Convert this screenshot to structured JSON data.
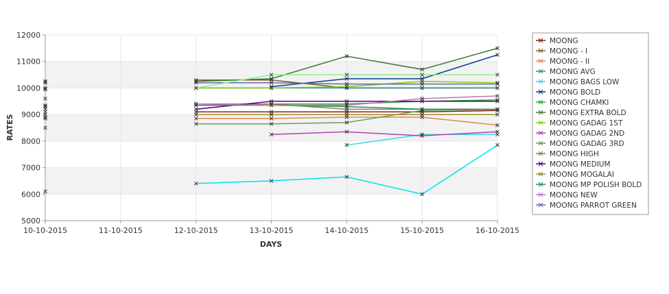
{
  "chart_data": {
    "type": "line",
    "xlabel": "DAYS",
    "ylabel": "RATES",
    "ylim": [
      5000,
      12000
    ],
    "yticks": [
      5000,
      6000,
      7000,
      8000,
      9000,
      10000,
      11000,
      12000
    ],
    "categories": [
      "10-10-2015",
      "11-10-2015",
      "12-10-2015",
      "13-10-2015",
      "14-10-2015",
      "15-10-2015",
      "16-10-2015"
    ],
    "grid": true,
    "legend_position": "right",
    "series": [
      {
        "name": "MOONG",
        "color": "#8b1a1a",
        "values": [
          9100,
          null,
          9100,
          9100,
          9100,
          9100,
          9150
        ]
      },
      {
        "name": "MOONG - I",
        "color": "#8b5a2b",
        "values": [
          10250,
          null,
          10300,
          10300,
          10000,
          10000,
          10000
        ]
      },
      {
        "name": "MOONG - II",
        "color": "#e8834a",
        "values": [
          8850,
          null,
          8850,
          8850,
          8900,
          8900,
          8600
        ]
      },
      {
        "name": "MOONG AVG",
        "color": "#2f8f8f",
        "values": [
          9950,
          null,
          10000,
          10000,
          10000,
          10000,
          10000
        ]
      },
      {
        "name": "MOONG BAGS LOW",
        "color": "#40d8e0",
        "values": [
          8500,
          null,
          null,
          null,
          7850,
          8250,
          8250
        ]
      },
      {
        "name": "MOONG BOLD",
        "color": "#0a3f8c",
        "values": [
          9950,
          null,
          null,
          10050,
          10350,
          10350,
          11250
        ]
      },
      {
        "name": "MOONG CHAMKI",
        "color": "#22aa22",
        "values": [
          9300,
          null,
          9400,
          9400,
          9400,
          9500,
          9550
        ]
      },
      {
        "name": "MOONG EXTRA BOLD",
        "color": "#3a7a3a",
        "values": [
          10250,
          null,
          10250,
          10350,
          11200,
          10700,
          11500
        ]
      },
      {
        "name": "MOONG GADAG 1ST",
        "color": "#7fcc1a",
        "values": [
          10250,
          null,
          10000,
          10000,
          10050,
          10250,
          10200
        ]
      },
      {
        "name": "MOONG GADAG 2ND",
        "color": "#b040b0",
        "values": [
          null,
          null,
          null,
          8250,
          8350,
          8200,
          8350
        ]
      },
      {
        "name": "MOONG GADAG 3RD",
        "color": "#5fa05f",
        "values": [
          8900,
          null,
          8650,
          8650,
          8700,
          9150,
          9200
        ]
      },
      {
        "name": "MOONG HIGH",
        "color": "#a07050",
        "values": [
          9300,
          null,
          9400,
          9400,
          9200,
          9200,
          9200
        ]
      },
      {
        "name": "MOONG MEDIUM",
        "color": "#4b0082",
        "values": [
          9200,
          null,
          9200,
          9500,
          9500,
          9500,
          9500
        ]
      },
      {
        "name": "MOONG MOGALAI",
        "color": "#9a8a20",
        "values": [
          9000,
          null,
          9000,
          9000,
          9000,
          9000,
          9000
        ]
      },
      {
        "name": "MOONG MP POLISH BOLD",
        "color": "#1f9060",
        "values": [
          9350,
          null,
          9350,
          9350,
          9300,
          9200,
          9200
        ]
      },
      {
        "name": "MOONG NEW",
        "color": "#c070c0",
        "values": [
          9600,
          null,
          9400,
          9350,
          9350,
          9600,
          9700
        ]
      },
      {
        "name": "MOONG PARROT GREEN",
        "color": "#5f6fa0",
        "values": [
          10200,
          null,
          10200,
          10200,
          10150,
          10150,
          10150
        ]
      },
      {
        "name": "",
        "color": "#90ee90",
        "values": [
          10000,
          null,
          10000,
          10500,
          10500,
          10500,
          10500
        ]
      },
      {
        "name": "",
        "color": "#00e0f0",
        "values": [
          6100,
          null,
          6400,
          6500,
          6650,
          6000,
          7850
        ]
      }
    ]
  }
}
